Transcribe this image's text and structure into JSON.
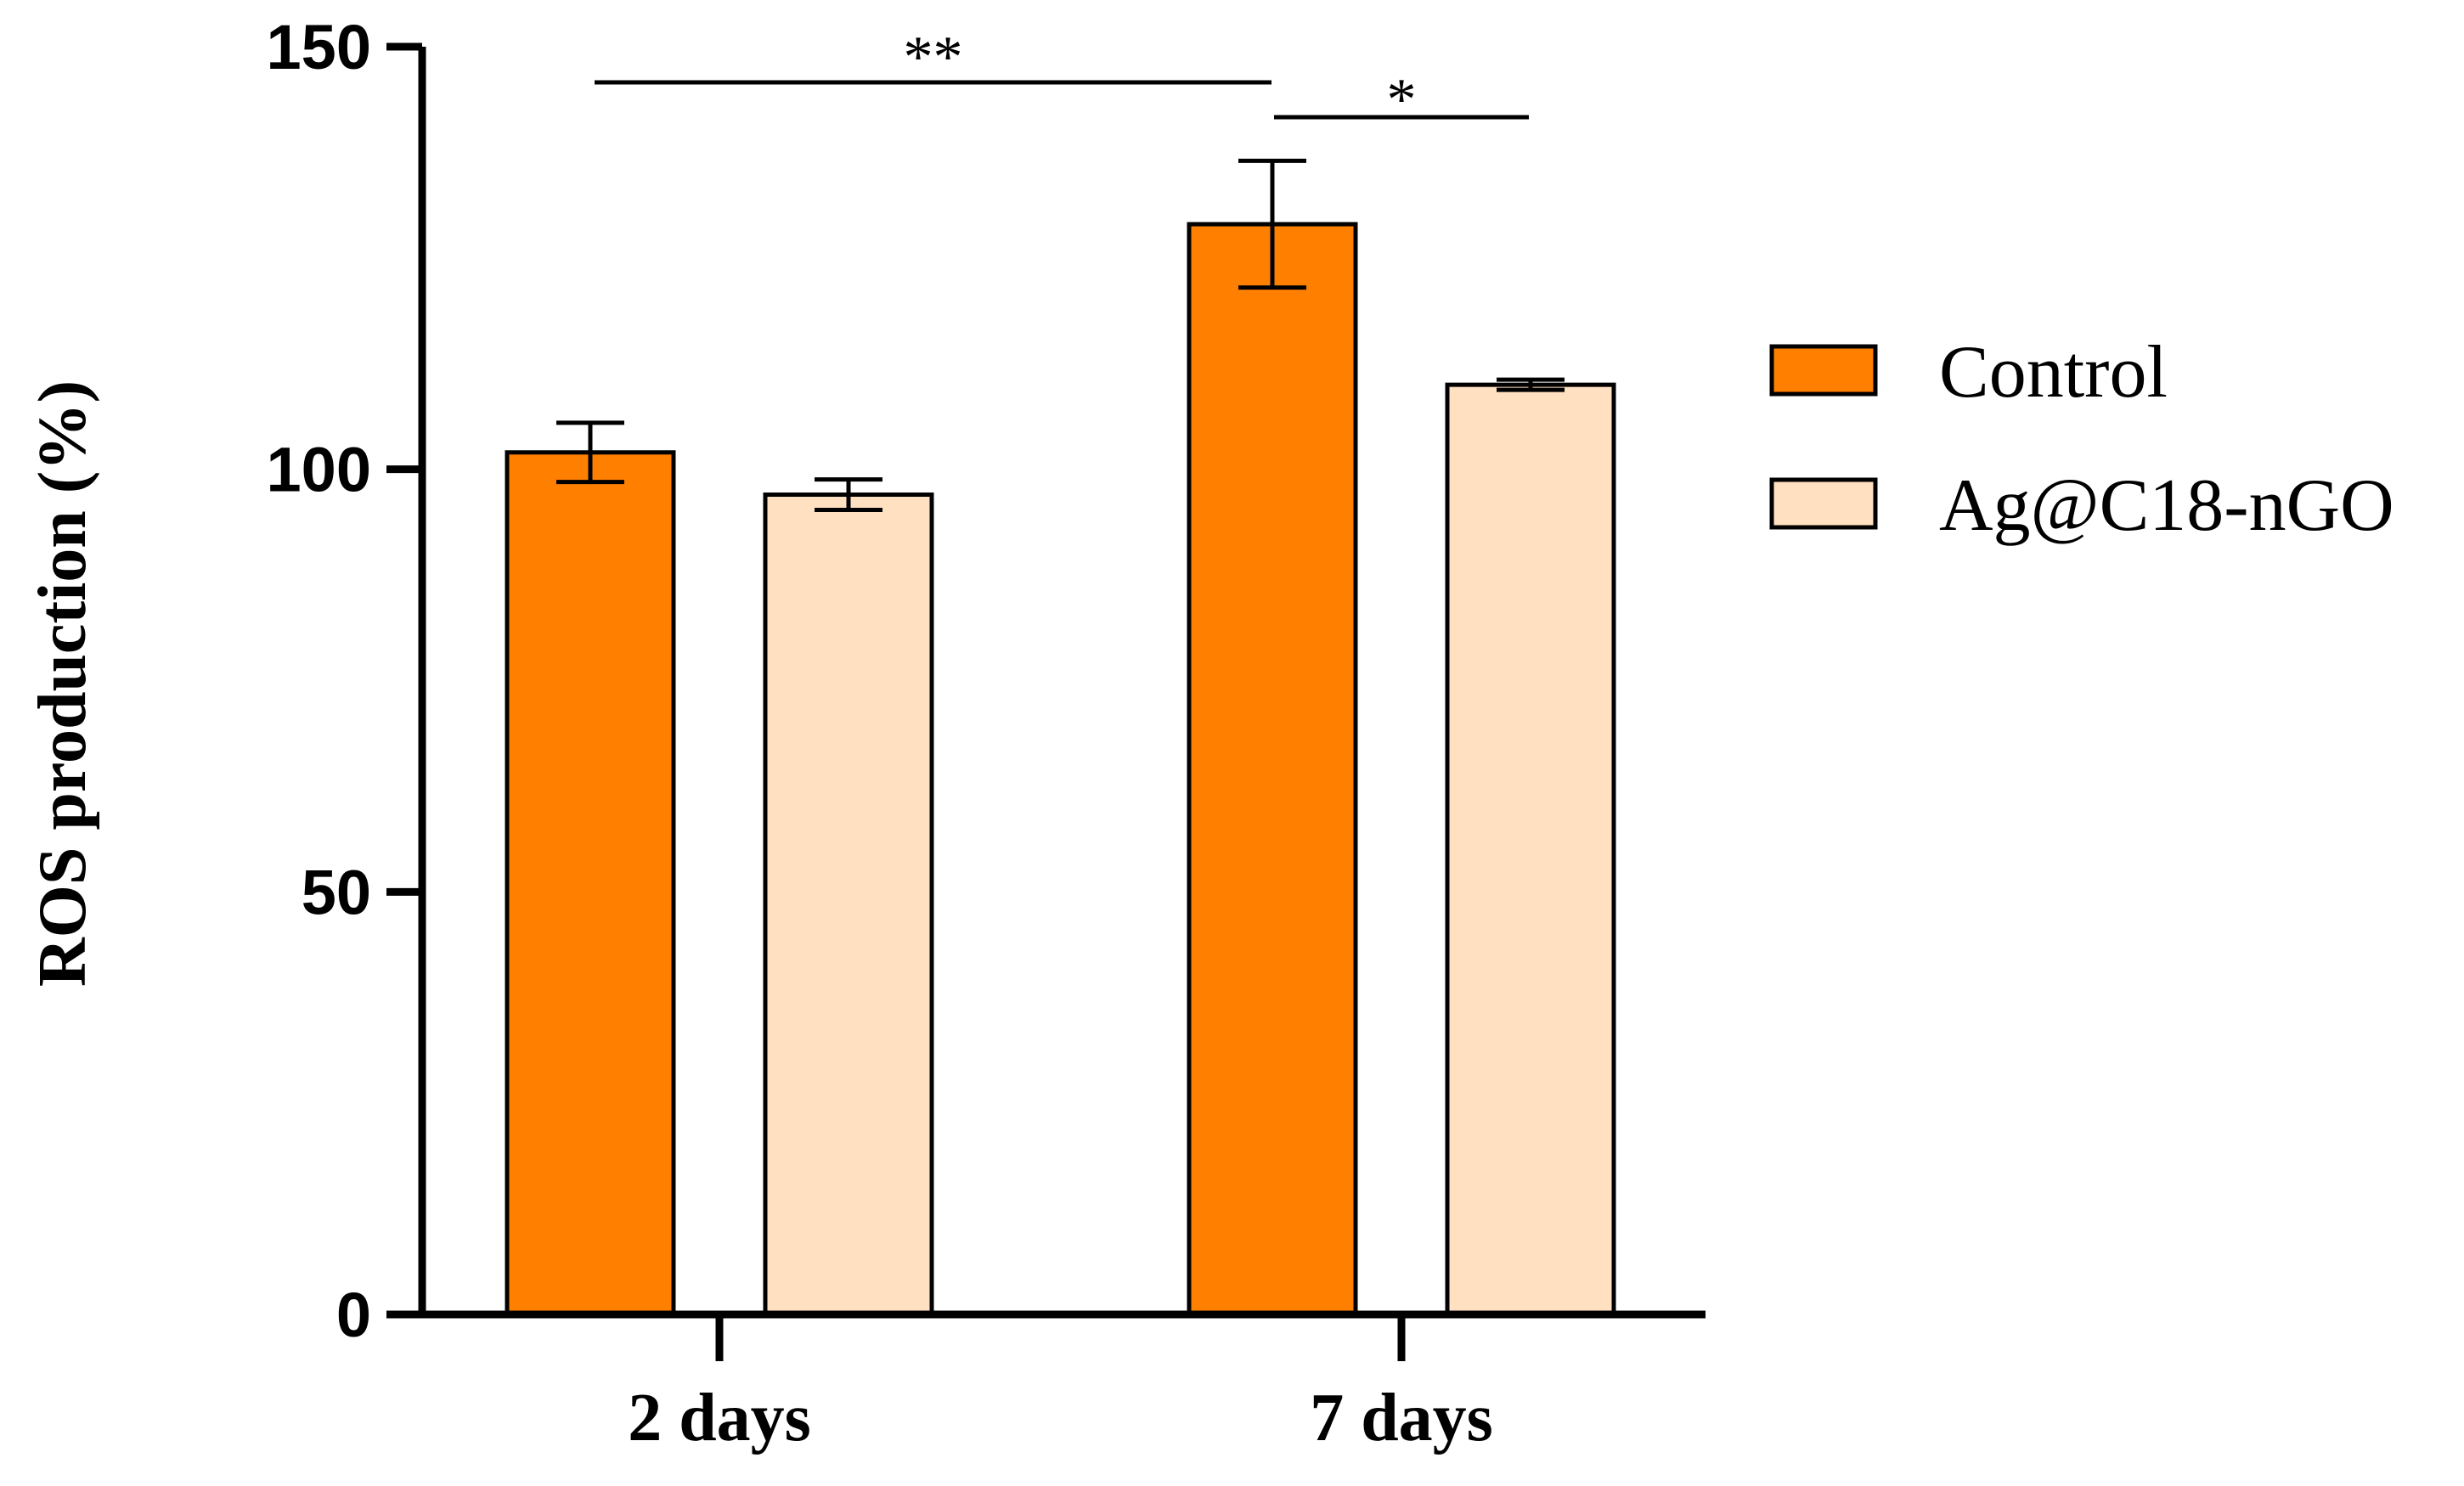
{
  "chart_data": {
    "type": "bar",
    "categories": [
      "2 days",
      "7 days"
    ],
    "series": [
      {
        "name": "Control",
        "color": "#ff8000",
        "values": [
          102,
          129
        ],
        "errors": [
          3.5,
          7.5
        ]
      },
      {
        "name": "Ag@C18-nGO",
        "color": "#ffe1c2",
        "values": [
          97,
          110
        ],
        "errors": [
          1.8,
          0.6
        ]
      }
    ],
    "ylabel": "ROS production (%)",
    "xlabel": "",
    "ylim": [
      0,
      150
    ],
    "yticks": [
      "0",
      "50",
      "100",
      "150"
    ],
    "ytick_values": [
      0,
      50,
      100,
      150
    ],
    "grid": false,
    "legend_position": "right",
    "significance": [
      {
        "label": "**",
        "from_category": 0,
        "from_series": 0,
        "to_category": 1,
        "to_series": 0
      },
      {
        "label": "*",
        "from_category": 1,
        "from_series": 0,
        "to_category": 1,
        "to_series": 1
      }
    ]
  }
}
